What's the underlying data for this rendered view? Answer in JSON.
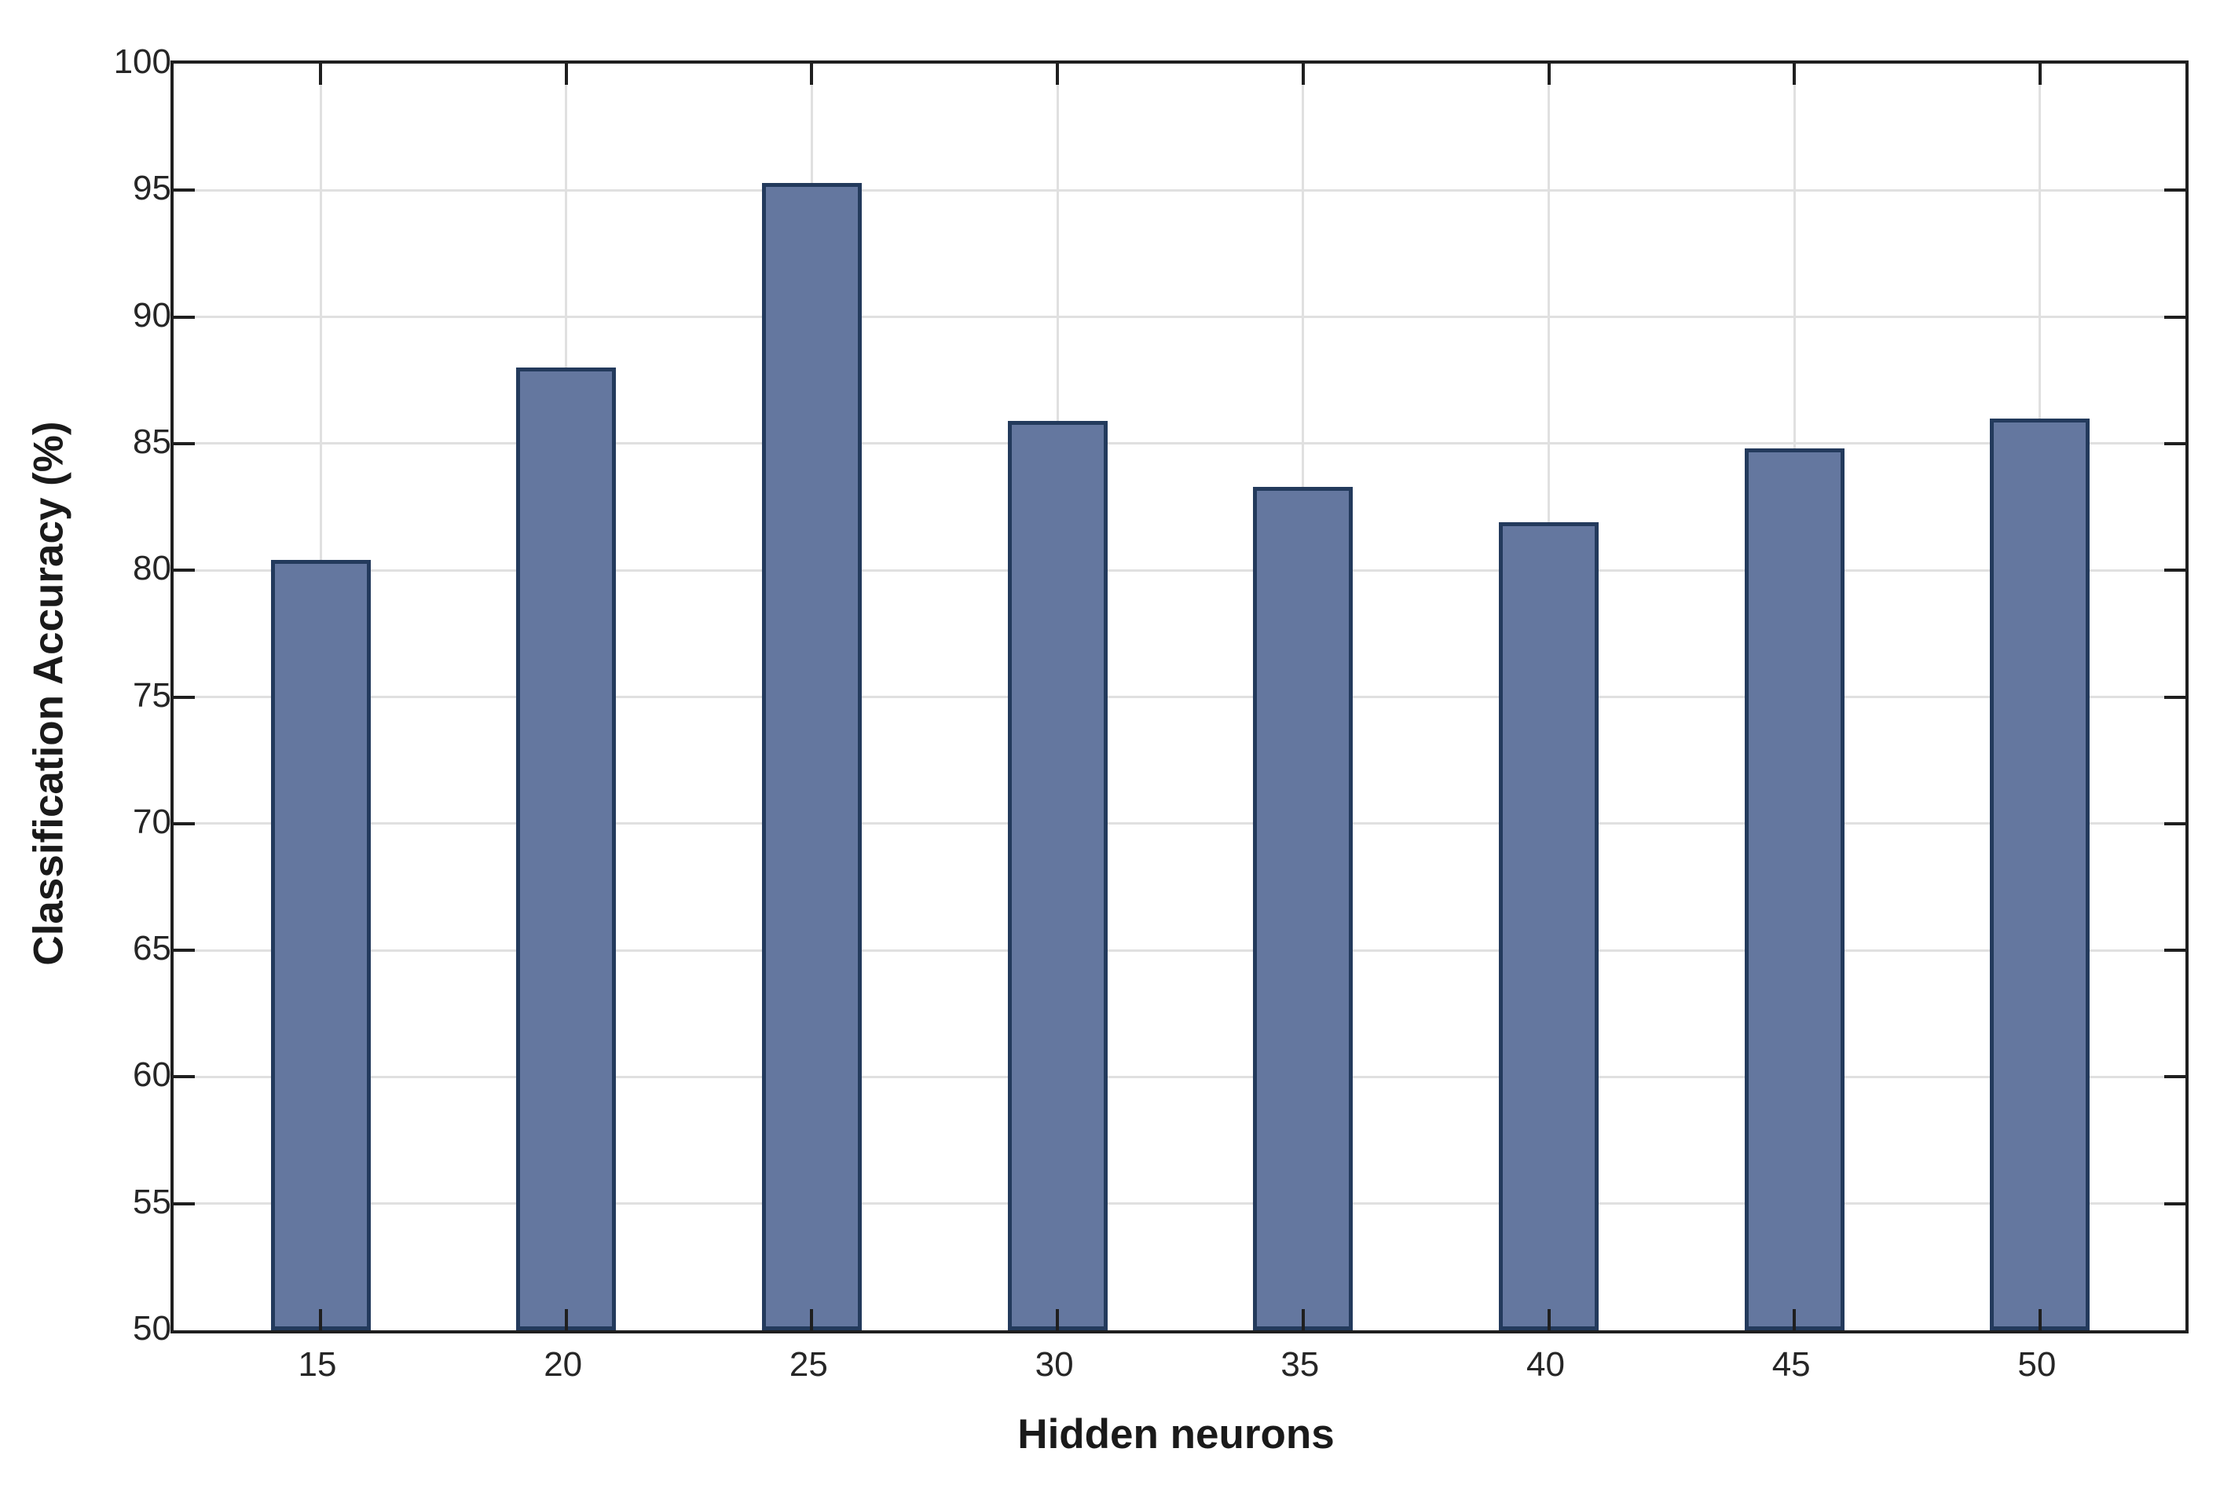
{
  "chart_data": {
    "type": "bar",
    "title": "",
    "categories": [
      "15",
      "20",
      "25",
      "30",
      "35",
      "40",
      "45",
      "50"
    ],
    "values": [
      80.4,
      88.0,
      95.3,
      85.9,
      83.3,
      81.9,
      84.8,
      86.0
    ],
    "xlabel": "Hidden neurons",
    "ylabel": "Classification Accuracy (%)",
    "ylim": [
      50,
      100
    ],
    "yticks": [
      50,
      55,
      60,
      65,
      70,
      75,
      80,
      85,
      90,
      95,
      100
    ],
    "grid": "on",
    "legend_position": "none",
    "colors": {
      "bar_fill": "#64779F",
      "bar_edge": "#233A5C",
      "grid": "#E0E0E0",
      "axis": "#1F1F1F",
      "tick_label": "#262626",
      "background": "#FFFFFF"
    }
  }
}
